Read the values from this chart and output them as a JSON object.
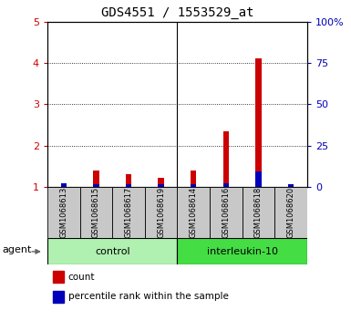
{
  "title": "GDS4551 / 1553529_at",
  "samples": [
    "GSM1068613",
    "GSM1068615",
    "GSM1068617",
    "GSM1068619",
    "GSM1068614",
    "GSM1068616",
    "GSM1068618",
    "GSM1068620"
  ],
  "red_values": [
    1.05,
    1.4,
    1.3,
    1.22,
    1.4,
    2.35,
    4.12,
    1.05
  ],
  "blue_values": [
    1.08,
    1.07,
    1.07,
    1.07,
    1.07,
    1.1,
    1.38,
    1.07
  ],
  "control_indices": [
    0,
    1,
    2,
    3
  ],
  "interleukin_indices": [
    4,
    5,
    6,
    7
  ],
  "control_label": "control",
  "interleukin_label": "interleukin-10",
  "agent_label": "agent",
  "ylim_left": [
    1,
    5
  ],
  "ylim_right": [
    0,
    100
  ],
  "yticks_left": [
    1,
    2,
    3,
    4,
    5
  ],
  "yticks_right": [
    0,
    25,
    50,
    75,
    100
  ],
  "ytick_labels_left": [
    "1",
    "2",
    "3",
    "4",
    "5"
  ],
  "ytick_labels_right": [
    "0",
    "25",
    "50",
    "75",
    "100%"
  ],
  "bar_color_red": "#cc0000",
  "bar_color_blue": "#0000bb",
  "bar_bg_color": "#c8c8c8",
  "control_bg": "#b0f0b0",
  "interleukin_bg": "#44dd44",
  "legend_count": "count",
  "legend_percentile": "percentile rank within the sample",
  "red_bar_width": 0.18,
  "blue_bar_width": 0.18,
  "group_split": 3.5
}
